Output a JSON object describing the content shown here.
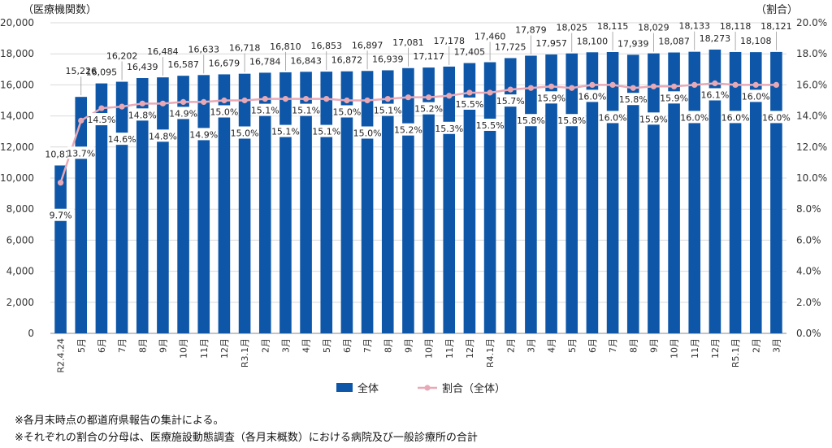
{
  "chart_data": {
    "type": "bar",
    "left_axis_label": "（医療機関数）",
    "right_axis_label": "（割合）",
    "categories": [
      "R2.4.24",
      "5月",
      "6月",
      "7月",
      "8月",
      "9月",
      "10月",
      "11月",
      "12月",
      "R3.1月",
      "2月",
      "3月",
      "4月",
      "5月",
      "6月",
      "7月",
      "8月",
      "9月",
      "10月",
      "11月",
      "12月",
      "R4.1月",
      "2月",
      "3月",
      "4月",
      "5月",
      "6月",
      "7月",
      "8月",
      "9月",
      "10月",
      "11月",
      "12月",
      "R5.1月",
      "2月",
      "3月"
    ],
    "series": [
      {
        "name": "全体",
        "kind": "bar",
        "color": "#0e57a8",
        "values": [
          10812,
          15226,
          16095,
          16202,
          16439,
          16484,
          16587,
          16633,
          16679,
          16718,
          16784,
          16810,
          16843,
          16853,
          16872,
          16897,
          16939,
          17081,
          17117,
          17178,
          17405,
          17460,
          17725,
          17879,
          17957,
          18025,
          18100,
          18115,
          17939,
          18029,
          18087,
          18133,
          18273,
          18118,
          18108,
          18121
        ],
        "labels": [
          "10,812",
          "15,226",
          "16,095",
          "16,202",
          "16,439",
          "16,484",
          "16,587",
          "16,633",
          "16,679",
          "16,718",
          "16,784",
          "16,810",
          "16,843",
          "16,853",
          "16,872",
          "16,897",
          "16,939",
          "17,081",
          "17,117",
          "17,178",
          "17,405",
          "17,460",
          "17,725",
          "17,879",
          "17,957",
          "18,025",
          "18,100",
          "18,115",
          "17,939",
          "18,029",
          "18,087",
          "18,133",
          "18,273",
          "18,118",
          "18,108",
          "18,121"
        ]
      },
      {
        "name": "割合（全体）",
        "kind": "line",
        "color": "#e8a9b6",
        "values": [
          9.7,
          13.7,
          14.5,
          14.6,
          14.8,
          14.8,
          14.9,
          14.9,
          15.0,
          15.0,
          15.1,
          15.1,
          15.1,
          15.1,
          15.0,
          15.0,
          15.1,
          15.2,
          15.2,
          15.3,
          15.5,
          15.5,
          15.7,
          15.8,
          15.9,
          15.8,
          16.0,
          16.0,
          15.8,
          15.9,
          15.9,
          16.0,
          16.1,
          16.0,
          16.0,
          16.0
        ],
        "labels": [
          "9.7%",
          "13.7%",
          "14.5%",
          "14.6%",
          "14.8%",
          "14.8%",
          "14.9%",
          "14.9%",
          "15.0%",
          "15.0%",
          "15.1%",
          "15.1%",
          "15.1%",
          "15.1%",
          "15.0%",
          "15.0%",
          "15.1%",
          "15.2%",
          "15.2%",
          "15.3%",
          "15.5%",
          "15.5%",
          "15.7%",
          "15.8%",
          "15.9%",
          "15.8%",
          "16.0%",
          "16.0%",
          "15.8%",
          "15.9%",
          "15.9%",
          "16.0%",
          "16.1%",
          "16.0%",
          "16.0%",
          "16.0%"
        ]
      }
    ],
    "left_axis": {
      "min": 0,
      "max": 20000,
      "step": 2000,
      "tick_labels": [
        "0",
        "2,000",
        "4,000",
        "6,000",
        "8,000",
        "10,000",
        "12,000",
        "14,000",
        "16,000",
        "18,000",
        "20,000"
      ]
    },
    "right_axis": {
      "min": 0,
      "max": 20,
      "step": 2,
      "tick_labels": [
        "0.0%",
        "2.0%",
        "4.0%",
        "6.0%",
        "8.0%",
        "10.0%",
        "12.0%",
        "14.0%",
        "16.0%",
        "18.0%",
        "20.0%"
      ]
    },
    "grid": true,
    "legend_position": "bottom"
  },
  "notes": [
    "※各月末時点の都道府県報告の集計による。",
    "※それぞれの割合の分母は、医療施設動態調査（各月末概数）における病院及び一般診療所の合計"
  ]
}
